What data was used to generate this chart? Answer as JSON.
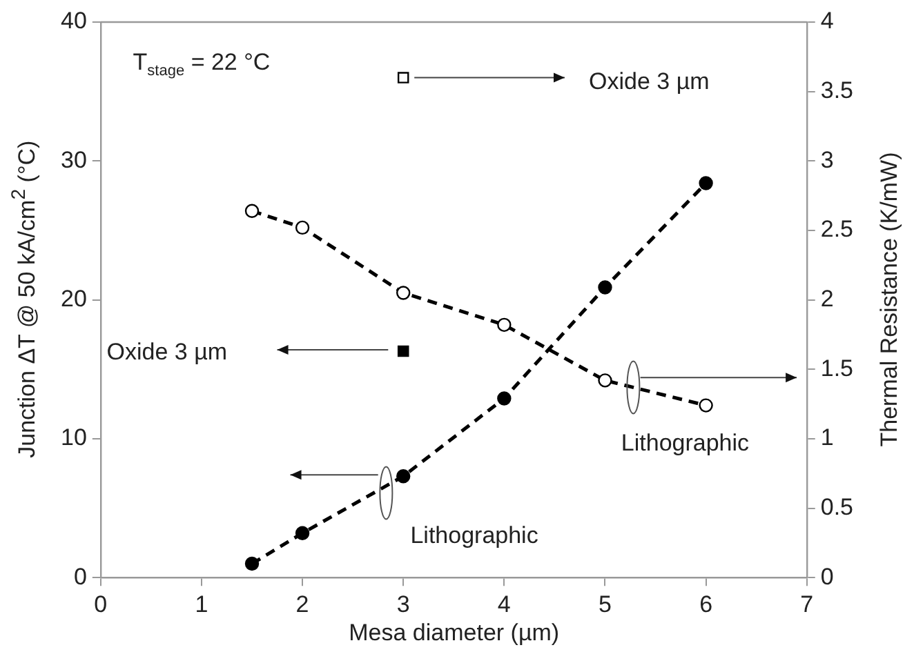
{
  "chart_data": {
    "type": "line",
    "xlabel": "Mesa diameter (µm)",
    "ylabel": "Junction ΔT @ 50 kA/cm$^{2}$ (°C)",
    "y2label": "Thermal Resistance (K/mW)",
    "xlim": [
      0,
      7
    ],
    "xticks": [
      0,
      1,
      2,
      3,
      4,
      5,
      6,
      7
    ],
    "ylim": [
      0,
      40
    ],
    "yticks": [
      0,
      10,
      20,
      30,
      40
    ],
    "y2lim": [
      0,
      4
    ],
    "y2ticks": [
      0,
      0.5,
      1,
      1.5,
      2,
      2.5,
      3,
      3.5,
      4
    ],
    "grid": false,
    "legend": false,
    "series": [
      {
        "color": "#000000",
        "marker": "circle",
        "line_style": "dashed",
        "x": [
          1.5,
          2,
          3,
          4,
          5,
          6
        ],
        "values": [
          1,
          3.2,
          7.3,
          12.9,
          20.9,
          28.4
        ]
      },
      {
        "type": "scatter",
        "color": "#000000",
        "marker": "square",
        "x": [
          3
        ],
        "values": [
          16.3
        ]
      },
      {
        "axis": "y2",
        "color": "#000000",
        "marker": "circle",
        "line_style": "dashed",
        "x": [
          1.5,
          2,
          3,
          4,
          5,
          6
        ],
        "values": [
          2.64,
          2.52,
          2.05,
          1.82,
          1.42,
          1.24
        ]
      },
      {
        "type": "scatter",
        "axis": "y2",
        "color": "#000000",
        "marker": "square",
        "x": [
          3
        ],
        "values": [
          3.6
        ]
      }
    ],
    "annotations": [
      "T$_{stage}$ = 22 °C",
      {
        "text": "Oxide 3 µm",
        "x": 3,
        "y": 36
      },
      "Oxide 3 µm",
      "Lithographic",
      "Lithographic"
    ]
  }
}
